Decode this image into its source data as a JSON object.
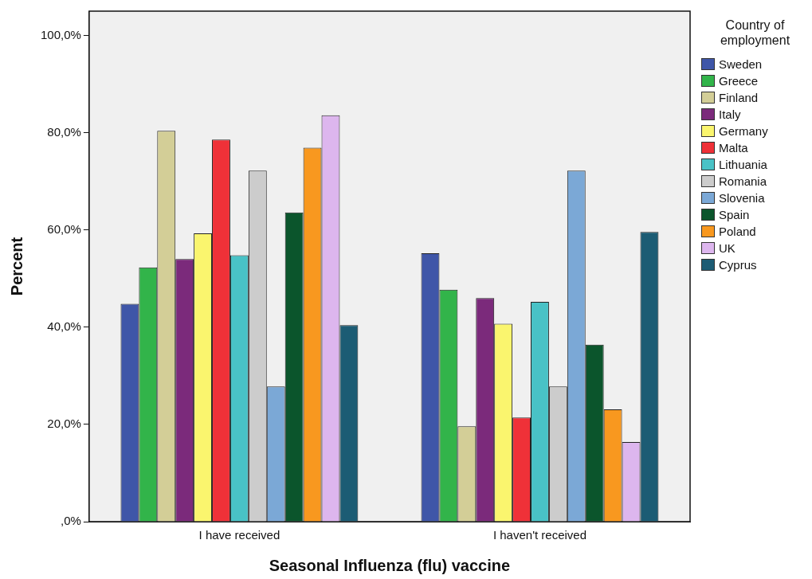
{
  "chart_data": {
    "type": "bar",
    "xlabel": "Seasonal Influenza (flu) vaccine",
    "ylabel": "Percent",
    "legend_title": "Country of employment",
    "legend": "right",
    "grid": false,
    "categories": [
      "I have received",
      "I haven't received"
    ],
    "ylim": [
      0,
      105
    ],
    "yticks": [
      {
        "value": 0,
        "label": ",0%"
      },
      {
        "value": 20,
        "label": "20,0%"
      },
      {
        "value": 40,
        "label": "40,0%"
      },
      {
        "value": 60,
        "label": "60,0%"
      },
      {
        "value": 80,
        "label": "80,0%"
      },
      {
        "value": 100,
        "label": "100,0%"
      }
    ],
    "series": [
      {
        "name": "Sweden",
        "color": "#3f56a8",
        "values": [
          44.8,
          55.2
        ]
      },
      {
        "name": "Greece",
        "color": "#32b44a",
        "values": [
          52.3,
          47.7
        ]
      },
      {
        "name": "Finland",
        "color": "#d3ce97",
        "values": [
          80.4,
          19.6
        ]
      },
      {
        "name": "Italy",
        "color": "#7b2a7b",
        "values": [
          54.0,
          46.0
        ]
      },
      {
        "name": "Germany",
        "color": "#faf56e",
        "values": [
          59.3,
          40.7
        ]
      },
      {
        "name": "Malta",
        "color": "#ef3138",
        "values": [
          78.6,
          21.4
        ]
      },
      {
        "name": "Lithuania",
        "color": "#49c2c6",
        "values": [
          54.8,
          45.2
        ]
      },
      {
        "name": "Romania",
        "color": "#cccccc",
        "values": [
          72.2,
          27.8
        ]
      },
      {
        "name": "Slovenia",
        "color": "#7ba8d6",
        "values": [
          27.8,
          72.2
        ]
      },
      {
        "name": "Spain",
        "color": "#0b552c",
        "values": [
          63.6,
          36.4
        ]
      },
      {
        "name": "Poland",
        "color": "#f8981f",
        "values": [
          76.9,
          23.1
        ]
      },
      {
        "name": "UK",
        "color": "#ddb6ee",
        "values": [
          83.6,
          16.4
        ]
      },
      {
        "name": "Cyprus",
        "color": "#1c5c74",
        "values": [
          40.4,
          59.6
        ]
      }
    ]
  }
}
